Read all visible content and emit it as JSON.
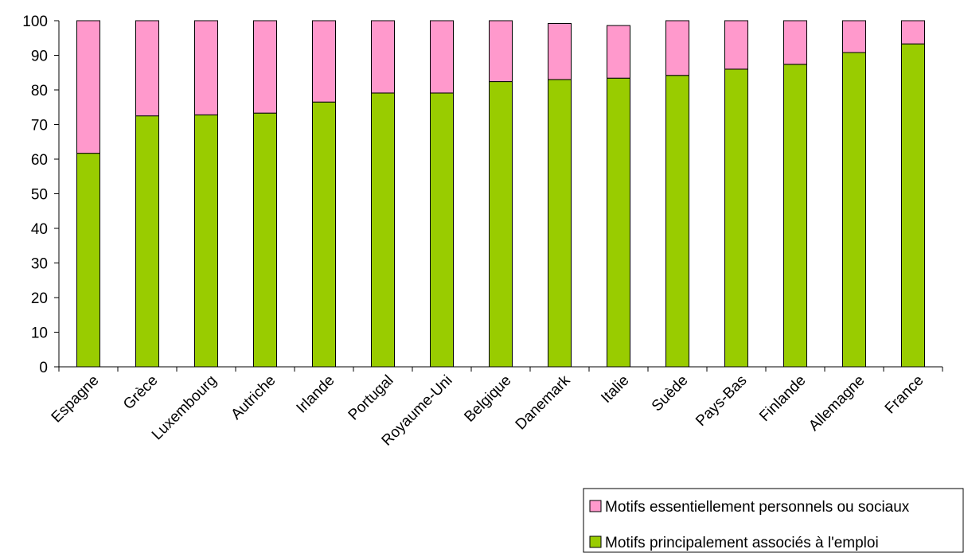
{
  "chart_data": {
    "type": "bar",
    "stacked": true,
    "title": "",
    "xlabel": "",
    "ylabel": "",
    "ylim": [
      0,
      100
    ],
    "yticks": [
      0,
      10,
      20,
      30,
      40,
      50,
      60,
      70,
      80,
      90,
      100
    ],
    "grid": false,
    "legend_position": "bottom-right",
    "categories": [
      "Espagne",
      "Grèce",
      "Luxembourg",
      "Autriche",
      "Irlande",
      "Portugal",
      "Royaume-Uni",
      "Belgique",
      "Danemark",
      "Italie",
      "Suède",
      "Pays-Bas",
      "Finlande",
      "Allemagne",
      "France"
    ],
    "series": [
      {
        "name": "Motifs principalement associés à l'emploi",
        "color": "#99cc00",
        "values": [
          61.7,
          72.5,
          72.8,
          73.3,
          76.5,
          79.1,
          79.1,
          82.4,
          83.0,
          83.4,
          84.2,
          86.0,
          87.4,
          90.8,
          93.3
        ]
      },
      {
        "name": "Motifs essentiellement personnels ou sociaux",
        "color": "#ff99cc",
        "values": [
          38.3,
          27.5,
          27.2,
          26.7,
          23.5,
          20.9,
          20.9,
          17.6,
          16.2,
          15.2,
          15.8,
          14.0,
          12.6,
          9.2,
          6.7
        ]
      }
    ],
    "legend": [
      "Motifs essentiellement personnels ou sociaux",
      "Motifs principalement associés à l'emploi"
    ]
  }
}
